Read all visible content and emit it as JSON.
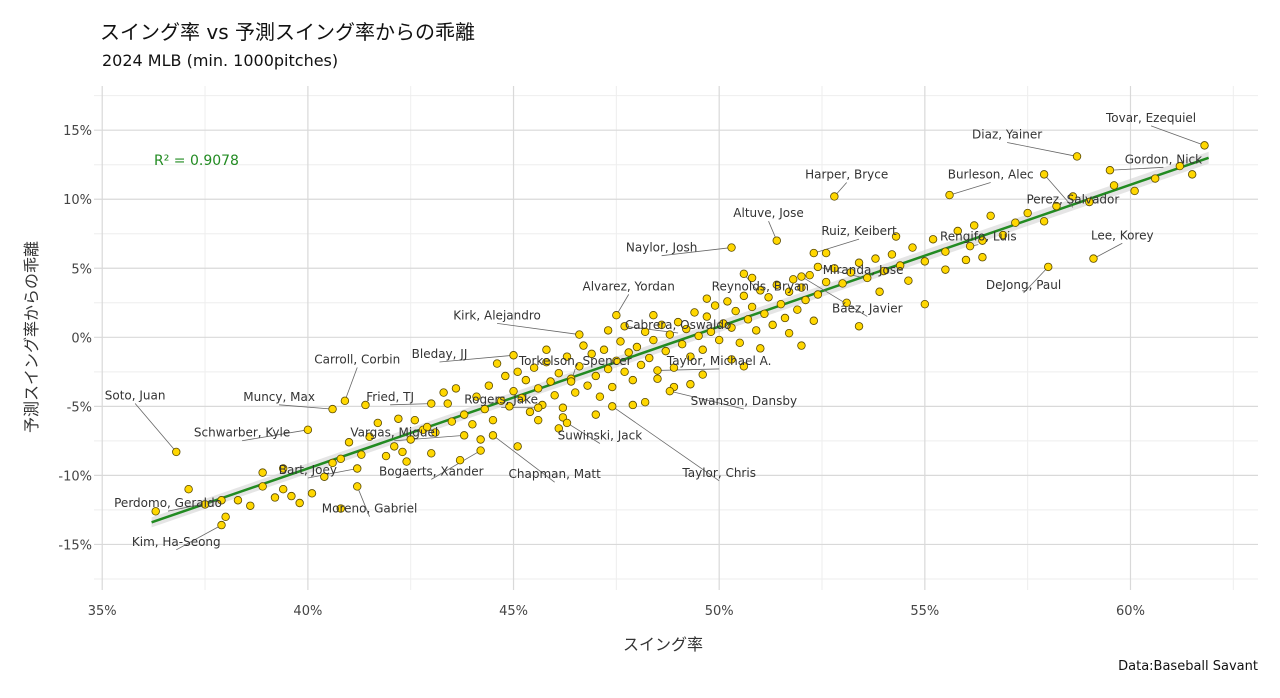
{
  "title": "スイング率 vs 予測スイング率からの乖離",
  "subtitle": "2024 MLB (min. 1000pitches)",
  "source": "Data:Baseball Savant",
  "colors": {
    "point_fill": "#FFD700",
    "point_stroke": "#5a4a00",
    "trend": "#228B22",
    "grid_major": "#d9d9d9",
    "grid_minor": "#eeeeee"
  },
  "chart_data": {
    "type": "scatter",
    "title": "スイング率 vs 予測スイング率からの乖離",
    "subtitle": "2024 MLB (min. 1000pitches)",
    "xlabel": "スイング率",
    "ylabel": "予測スイング率からの乖離",
    "xlim": [
      34.8,
      63.1
    ],
    "ylim": [
      -18.3,
      18.2
    ],
    "x_ticks": [
      35,
      40,
      45,
      50,
      55,
      60
    ],
    "y_ticks": [
      -15,
      -10,
      -5,
      0,
      5,
      10,
      15
    ],
    "x_tick_labels": [
      "35%",
      "40%",
      "45%",
      "50%",
      "55%",
      "60%"
    ],
    "y_tick_labels": [
      "-15%",
      "-10%",
      "-5%",
      "0%",
      "5%",
      "10%",
      "15%"
    ],
    "grid": true,
    "annotation": "R² = 0.9078",
    "trendline": {
      "x": [
        36.2,
        61.9
      ],
      "y": [
        -13.4,
        13.0
      ]
    },
    "labeled_points": [
      {
        "name": "Tovar, Ezequiel",
        "x": 61.8,
        "y": 13.9,
        "lx": 60.5,
        "ly": 15.6
      },
      {
        "name": "Diaz, Yainer",
        "x": 58.7,
        "y": 13.1,
        "lx": 57.0,
        "ly": 14.4
      },
      {
        "name": "Gordon, Nick",
        "x": 59.5,
        "y": 12.1,
        "lx": 60.8,
        "ly": 12.6
      },
      {
        "name": "Burleson, Alec",
        "x": 55.6,
        "y": 10.3,
        "lx": 56.6,
        "ly": 11.5
      },
      {
        "name": "Harper, Bryce",
        "x": 52.8,
        "y": 10.2,
        "lx": 53.1,
        "ly": 11.5
      },
      {
        "name": "Perez, Salvador",
        "x": 57.9,
        "y": 11.8,
        "lx": 58.6,
        "ly": 9.7
      },
      {
        "name": "Altuve, Jose",
        "x": 51.4,
        "y": 7.0,
        "lx": 51.2,
        "ly": 8.7
      },
      {
        "name": "Ruiz, Keibert",
        "x": 52.3,
        "y": 6.1,
        "lx": 53.4,
        "ly": 7.4
      },
      {
        "name": "Rengifo, Luis",
        "x": 56.1,
        "y": 6.6,
        "lx": 56.3,
        "ly": 7.0
      },
      {
        "name": "Lee, Korey",
        "x": 59.1,
        "y": 5.7,
        "lx": 59.8,
        "ly": 7.1
      },
      {
        "name": "Naylor, Josh",
        "x": 50.3,
        "y": 6.5,
        "lx": 48.6,
        "ly": 6.2
      },
      {
        "name": "Miranda, Jose",
        "x": 52.4,
        "y": 5.1,
        "lx": 53.5,
        "ly": 4.6
      },
      {
        "name": "DeJong, Paul",
        "x": 58.0,
        "y": 5.1,
        "lx": 57.4,
        "ly": 3.5
      },
      {
        "name": "Reynolds, Bryan",
        "x": 50.6,
        "y": 4.6,
        "lx": 51.0,
        "ly": 3.4
      },
      {
        "name": "Alvarez, Yordan",
        "x": 47.5,
        "y": 1.6,
        "lx": 47.8,
        "ly": 3.4
      },
      {
        "name": "Báez, Javier",
        "x": 52.0,
        "y": 4.4,
        "lx": 53.6,
        "ly": 1.8
      },
      {
        "name": "Kirk, Alejandro",
        "x": 46.6,
        "y": 0.2,
        "lx": 44.6,
        "ly": 1.3
      },
      {
        "name": "Cabrera, Oswaldo",
        "x": 47.7,
        "y": 0.8,
        "lx": 49.0,
        "ly": 0.6
      },
      {
        "name": "Bleday, JJ",
        "x": 45.0,
        "y": -1.3,
        "lx": 43.2,
        "ly": -1.5
      },
      {
        "name": "Carroll, Corbin",
        "x": 40.9,
        "y": -4.6,
        "lx": 41.2,
        "ly": -1.9
      },
      {
        "name": "Torkelson, Spencer",
        "x": 46.4,
        "y": -3.2,
        "lx": 46.5,
        "ly": -2.0
      },
      {
        "name": "Taylor, Michael A.",
        "x": 48.5,
        "y": -2.4,
        "lx": 50.0,
        "ly": -2.0
      },
      {
        "name": "Fried, TJ",
        "x": 43.0,
        "y": -4.8,
        "lx": 42.0,
        "ly": -4.6
      },
      {
        "name": "Muncy, Max",
        "x": 40.6,
        "y": -5.2,
        "lx": 39.3,
        "ly": -4.6
      },
      {
        "name": "Rogers, Jake",
        "x": 45.6,
        "y": -5.1,
        "lx": 44.7,
        "ly": -4.8
      },
      {
        "name": "Soto, Juan",
        "x": 36.8,
        "y": -8.3,
        "lx": 35.8,
        "ly": -4.5
      },
      {
        "name": "Swanson, Dansby",
        "x": 48.8,
        "y": -3.9,
        "lx": 50.6,
        "ly": -4.9
      },
      {
        "name": "Schwarber, Kyle",
        "x": 40.0,
        "y": -6.7,
        "lx": 38.4,
        "ly": -7.2
      },
      {
        "name": "Suwinski, Jack",
        "x": 46.3,
        "y": -6.2,
        "lx": 47.1,
        "ly": -7.4
      },
      {
        "name": "Vargas, Miguel",
        "x": 43.8,
        "y": -7.1,
        "lx": 42.1,
        "ly": -7.2
      },
      {
        "name": "Bart, Joey",
        "x": 41.2,
        "y": -9.5,
        "lx": 40.0,
        "ly": -9.9
      },
      {
        "name": "Bogaerts, Xander",
        "x": 44.2,
        "y": -8.2,
        "lx": 43.0,
        "ly": -10.0
      },
      {
        "name": "Chapman, Matt",
        "x": 44.5,
        "y": -7.1,
        "lx": 46.0,
        "ly": -10.2
      },
      {
        "name": "Taylor, Chris",
        "x": 47.4,
        "y": -5.0,
        "lx": 50.0,
        "ly": -10.1
      },
      {
        "name": "Perdomo, Geraldo",
        "x": 37.9,
        "y": -11.8,
        "lx": 36.6,
        "ly": -12.3
      },
      {
        "name": "Moreno, Gabriel",
        "x": 41.2,
        "y": -10.8,
        "lx": 41.5,
        "ly": -12.7
      },
      {
        "name": "Kim, Ha-Seong",
        "x": 37.9,
        "y": -13.6,
        "lx": 36.8,
        "ly": -15.1
      }
    ],
    "points": [
      [
        36.3,
        -12.6
      ],
      [
        37.1,
        -11.0
      ],
      [
        37.5,
        -12.1
      ],
      [
        38.0,
        -13.0
      ],
      [
        38.3,
        -11.8
      ],
      [
        38.6,
        -12.2
      ],
      [
        38.9,
        -10.8
      ],
      [
        39.2,
        -11.6
      ],
      [
        39.4,
        -11.0
      ],
      [
        39.6,
        -11.5
      ],
      [
        38.9,
        -9.8
      ],
      [
        39.4,
        -9.5
      ],
      [
        40.1,
        -11.3
      ],
      [
        40.4,
        -10.1
      ],
      [
        40.6,
        -9.1
      ],
      [
        40.8,
        -8.8
      ],
      [
        41.0,
        -7.6
      ],
      [
        41.3,
        -8.5
      ],
      [
        41.5,
        -7.2
      ],
      [
        41.7,
        -6.2
      ],
      [
        41.9,
        -8.6
      ],
      [
        42.1,
        -7.9
      ],
      [
        42.3,
        -8.3
      ],
      [
        42.5,
        -7.4
      ],
      [
        42.6,
        -6.0
      ],
      [
        42.8,
        -6.7
      ],
      [
        43.0,
        -8.4
      ],
      [
        43.1,
        -6.9
      ],
      [
        43.3,
        -4.0
      ],
      [
        43.5,
        -6.1
      ],
      [
        43.6,
        -3.7
      ],
      [
        43.8,
        -5.6
      ],
      [
        44.0,
        -6.3
      ],
      [
        44.1,
        -4.3
      ],
      [
        44.3,
        -5.2
      ],
      [
        44.4,
        -3.5
      ],
      [
        44.5,
        -6.0
      ],
      [
        44.7,
        -4.6
      ],
      [
        44.8,
        -2.8
      ],
      [
        44.9,
        -5.0
      ],
      [
        45.0,
        -3.9
      ],
      [
        45.1,
        -2.5
      ],
      [
        45.2,
        -4.4
      ],
      [
        45.3,
        -3.1
      ],
      [
        45.4,
        -5.4
      ],
      [
        45.5,
        -2.2
      ],
      [
        45.6,
        -3.7
      ],
      [
        45.7,
        -4.9
      ],
      [
        45.8,
        -1.8
      ],
      [
        45.9,
        -3.2
      ],
      [
        46.0,
        -4.2
      ],
      [
        46.1,
        -2.6
      ],
      [
        46.2,
        -5.1
      ],
      [
        46.3,
        -1.4
      ],
      [
        46.4,
        -3.0
      ],
      [
        46.5,
        -4.0
      ],
      [
        46.6,
        -2.1
      ],
      [
        46.7,
        -0.6
      ],
      [
        46.8,
        -3.5
      ],
      [
        46.9,
        -1.2
      ],
      [
        47.0,
        -2.8
      ],
      [
        47.1,
        -4.3
      ],
      [
        47.2,
        -0.9
      ],
      [
        47.3,
        -2.3
      ],
      [
        47.4,
        -3.6
      ],
      [
        47.5,
        -1.7
      ],
      [
        47.6,
        -0.3
      ],
      [
        47.7,
        -2.5
      ],
      [
        47.8,
        -1.1
      ],
      [
        47.9,
        -3.1
      ],
      [
        48.0,
        -0.7
      ],
      [
        48.1,
        -2.0
      ],
      [
        48.2,
        0.4
      ],
      [
        48.3,
        -1.5
      ],
      [
        48.4,
        -0.2
      ],
      [
        48.5,
        -3.0
      ],
      [
        48.6,
        0.9
      ],
      [
        48.7,
        -1.0
      ],
      [
        48.8,
        0.2
      ],
      [
        48.9,
        -2.2
      ],
      [
        49.0,
        1.1
      ],
      [
        49.1,
        -0.5
      ],
      [
        49.2,
        0.6
      ],
      [
        49.3,
        -1.4
      ],
      [
        49.4,
        1.8
      ],
      [
        49.5,
        0.1
      ],
      [
        49.6,
        -0.9
      ],
      [
        49.7,
        1.5
      ],
      [
        49.8,
        0.4
      ],
      [
        49.9,
        2.3
      ],
      [
        50.0,
        -0.2
      ],
      [
        50.1,
        1.0
      ],
      [
        50.2,
        2.6
      ],
      [
        50.3,
        0.7
      ],
      [
        50.4,
        1.9
      ],
      [
        50.5,
        -0.4
      ],
      [
        50.6,
        3.0
      ],
      [
        50.7,
        1.3
      ],
      [
        50.8,
        2.2
      ],
      [
        50.9,
        0.5
      ],
      [
        51.0,
        3.4
      ],
      [
        51.1,
        1.7
      ],
      [
        51.2,
        2.9
      ],
      [
        51.3,
        0.9
      ],
      [
        51.4,
        3.8
      ],
      [
        51.5,
        2.4
      ],
      [
        51.6,
        1.4
      ],
      [
        51.7,
        3.3
      ],
      [
        51.8,
        4.2
      ],
      [
        51.9,
        2.0
      ],
      [
        52.0,
        3.6
      ],
      [
        52.1,
        2.7
      ],
      [
        52.2,
        4.5
      ],
      [
        52.4,
        3.1
      ],
      [
        52.6,
        4.0
      ],
      [
        52.8,
        5.0
      ],
      [
        53.0,
        3.9
      ],
      [
        53.2,
        4.7
      ],
      [
        53.4,
        5.4
      ],
      [
        53.6,
        4.3
      ],
      [
        53.8,
        5.7
      ],
      [
        54.0,
        4.8
      ],
      [
        54.2,
        6.0
      ],
      [
        54.4,
        5.2
      ],
      [
        54.7,
        6.5
      ],
      [
        55.0,
        5.5
      ],
      [
        55.2,
        7.1
      ],
      [
        55.5,
        6.2
      ],
      [
        55.8,
        7.7
      ],
      [
        56.0,
        5.6
      ],
      [
        56.2,
        8.1
      ],
      [
        56.4,
        7.0
      ],
      [
        56.6,
        8.8
      ],
      [
        56.9,
        7.4
      ],
      [
        57.2,
        8.3
      ],
      [
        57.5,
        9.0
      ],
      [
        57.9,
        8.4
      ],
      [
        58.2,
        9.5
      ],
      [
        58.6,
        10.2
      ],
      [
        59.0,
        9.8
      ],
      [
        59.6,
        11.0
      ],
      [
        60.1,
        10.6
      ],
      [
        60.6,
        11.5
      ],
      [
        61.2,
        12.4
      ],
      [
        61.5,
        11.8
      ],
      [
        41.4,
        -4.9
      ],
      [
        42.2,
        -5.9
      ],
      [
        42.9,
        -6.5
      ],
      [
        43.4,
        -4.8
      ],
      [
        44.2,
        -7.4
      ],
      [
        45.6,
        -6.0
      ],
      [
        46.2,
        -5.8
      ],
      [
        47.0,
        -5.6
      ],
      [
        48.2,
        -4.7
      ],
      [
        48.9,
        -3.6
      ],
      [
        49.6,
        -2.7
      ],
      [
        50.3,
        -1.6
      ],
      [
        51.0,
        -0.8
      ],
      [
        51.7,
        0.3
      ],
      [
        52.3,
        1.2
      ],
      [
        53.1,
        2.5
      ],
      [
        53.9,
        3.3
      ],
      [
        54.6,
        4.1
      ],
      [
        55.5,
        4.9
      ],
      [
        56.4,
        5.8
      ],
      [
        44.6,
        -1.9
      ],
      [
        45.8,
        -0.9
      ],
      [
        47.3,
        0.5
      ],
      [
        48.4,
        1.6
      ],
      [
        49.7,
        2.8
      ],
      [
        50.8,
        4.3
      ],
      [
        52.6,
        6.1
      ],
      [
        54.3,
        7.3
      ],
      [
        46.1,
        -6.6
      ],
      [
        47.9,
        -4.9
      ],
      [
        49.3,
        -3.4
      ],
      [
        50.6,
        -2.1
      ],
      [
        52.0,
        -0.6
      ],
      [
        53.4,
        0.8
      ],
      [
        55.0,
        2.4
      ],
      [
        42.4,
        -9.0
      ],
      [
        43.7,
        -8.9
      ],
      [
        45.1,
        -7.9
      ],
      [
        39.8,
        -12.0
      ],
      [
        40.8,
        -12.4
      ]
    ]
  }
}
